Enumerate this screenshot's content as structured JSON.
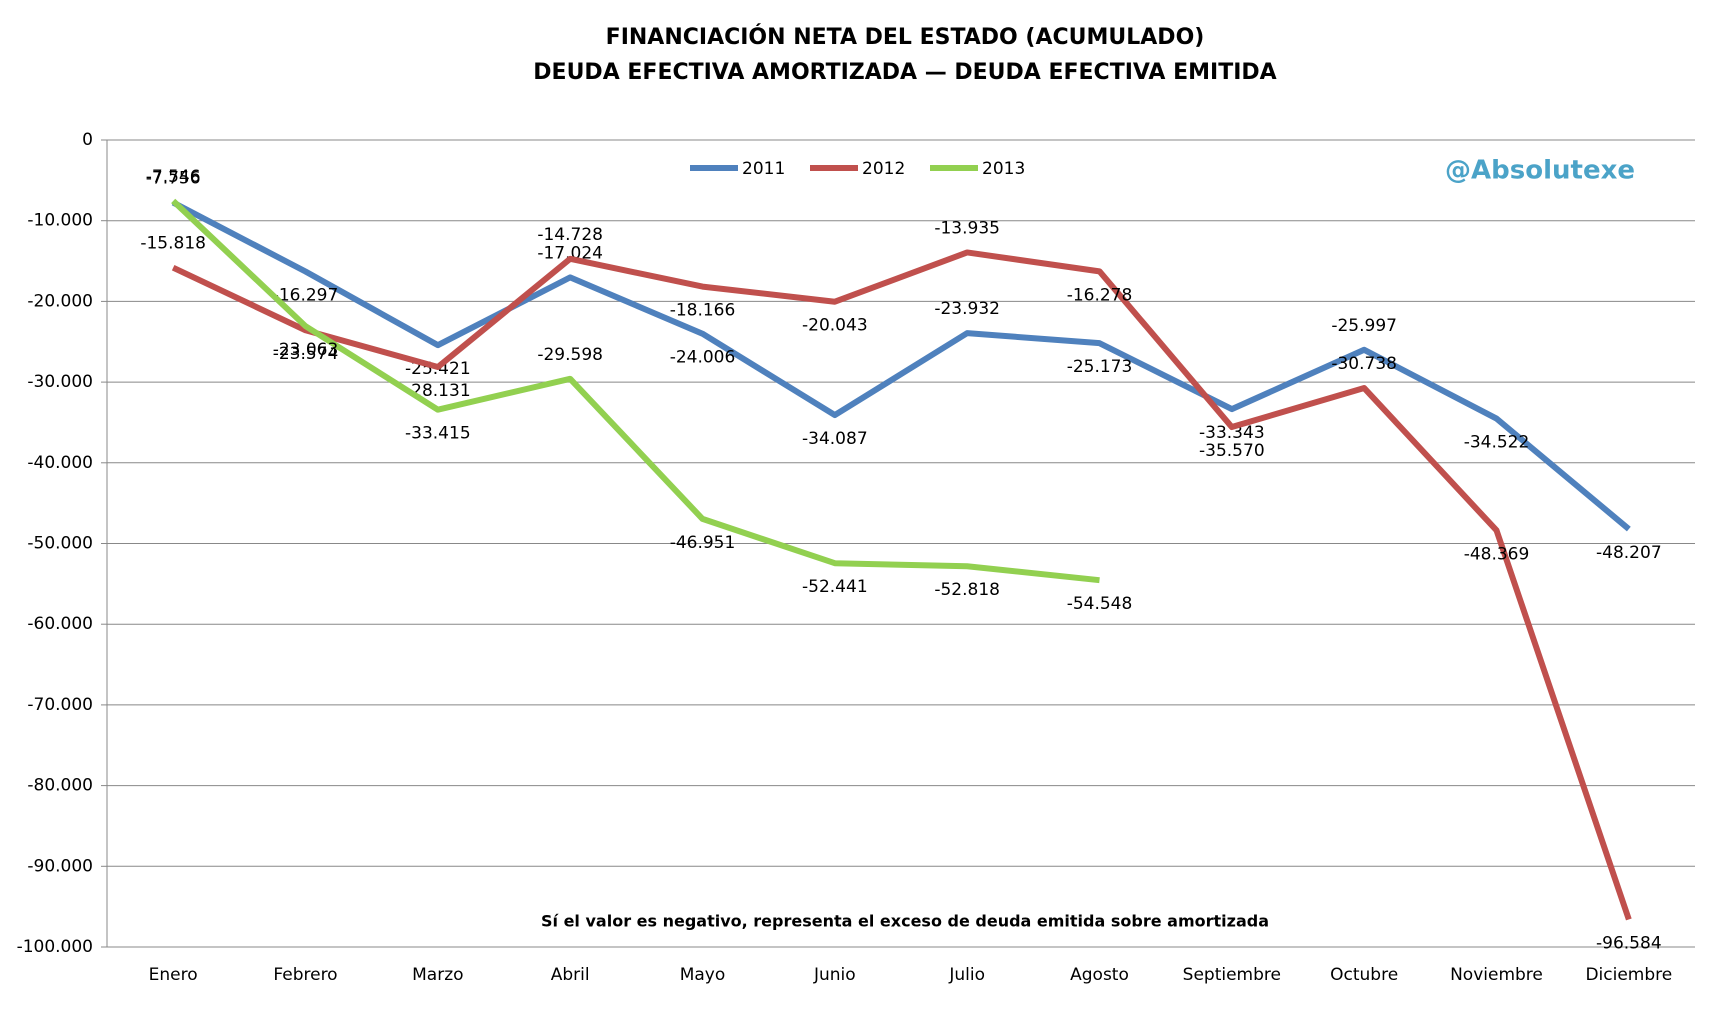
{
  "chart_data": {
    "type": "line",
    "title": "FINANCIACIÓN NETA DEL ESTADO (ACUMULADO)",
    "subtitle": "DEUDA EFECTIVA AMORTIZADA — DEUDA EFECTIVA EMITIDA",
    "watermark": "@Absolutexe",
    "annotation": "Sí el valor es negativo, representa el exceso de deuda emitida sobre amortizada",
    "categories": [
      "Enero",
      "Febrero",
      "Marzo",
      "Abril",
      "Mayo",
      "Junio",
      "Julio",
      "Agosto",
      "Septiembre",
      "Octubre",
      "Noviembre",
      "Diciembre"
    ],
    "series": [
      {
        "name": "2011",
        "color": "#4f81bd",
        "values": [
          -7756,
          -16297,
          -25421,
          -17024,
          -24006,
          -34087,
          -23932,
          -25173,
          -33343,
          -25997,
          -34522,
          -48207
        ],
        "value_labels": [
          "-7.756",
          "-16.297",
          "-25.421",
          "-17.024",
          "-24.006",
          "-34.087",
          "-23.932",
          "-25.173",
          "-33.343",
          "-25.997",
          "-34.522",
          "-48.207"
        ]
      },
      {
        "name": "2012",
        "color": "#c0504d",
        "values": [
          -15818,
          -23574,
          -28131,
          -14728,
          -18166,
          -20043,
          -13935,
          -16278,
          -35570,
          -30738,
          -48369,
          -96584
        ],
        "value_labels": [
          "-15.818",
          "-23.574",
          "-28.131",
          "-14.728",
          "-18.166",
          "-20.043",
          "-13.935",
          "-16.278",
          "-35.570",
          "-30.738",
          "-48.369",
          "-96.584"
        ]
      },
      {
        "name": "2013",
        "color": "#92d050",
        "values": [
          -7546,
          -23063,
          -33415,
          -29598,
          -46951,
          -52441,
          -52818,
          -54548,
          null,
          null,
          null,
          null
        ],
        "value_labels": [
          "-7.546",
          "-23.063",
          "-33.415",
          "-29.598",
          "-46.951",
          "-52.441",
          "-52.818",
          "-54.548",
          null,
          null,
          null,
          null
        ]
      }
    ],
    "ylim": [
      -100000,
      0
    ],
    "yticks": [
      0,
      {
        "value": -10000,
        "label": "-10.000"
      },
      {
        "value": -20000,
        "label": "-20.000"
      },
      {
        "value": -30000,
        "label": "-30.000"
      },
      {
        "value": -40000,
        "label": "-40.000"
      },
      {
        "value": -50000,
        "label": "-50.000"
      },
      {
        "value": -60000,
        "label": "-60.000"
      },
      {
        "value": -70000,
        "label": "-70.000"
      },
      {
        "value": -80000,
        "label": "-80.000"
      },
      {
        "value": -90000,
        "label": "-90.000"
      },
      {
        "value": -100000,
        "label": "-100.000"
      }
    ],
    "grid": true,
    "legend": "top"
  }
}
